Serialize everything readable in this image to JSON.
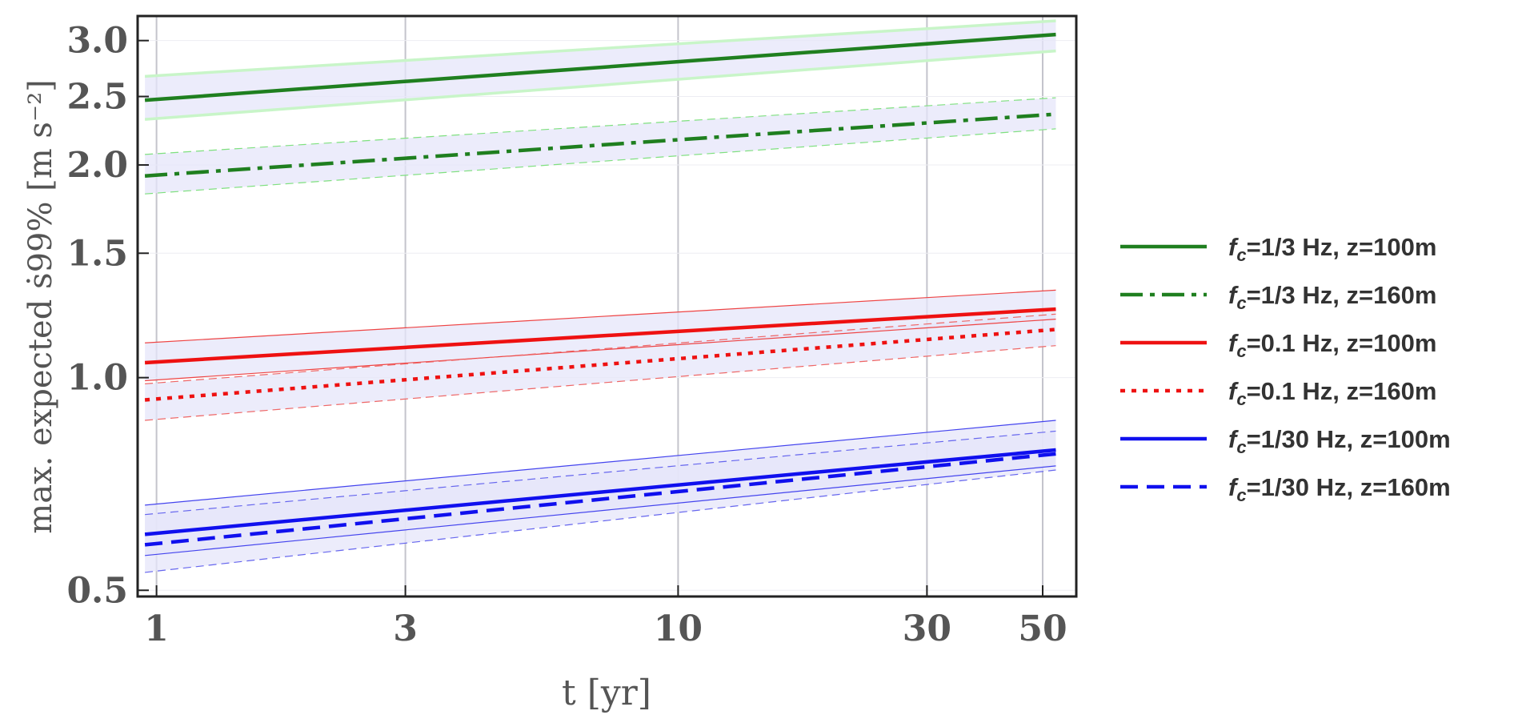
{
  "chart_data": {
    "type": "line",
    "xlabel": "t [yr]",
    "ylabel": "max. expected ṡ99% [m s⁻²]",
    "x_scale": "log",
    "y_scale": "log",
    "xlim": [
      0.92,
      58
    ],
    "ylim": [
      0.49,
      3.25
    ],
    "x_ticks": [
      1,
      3,
      10,
      30,
      50
    ],
    "x_tick_labels": [
      "1",
      "3",
      "10",
      "30",
      "50"
    ],
    "y_ticks": [
      0.5,
      1.0,
      1.5,
      2.0,
      2.5,
      3.0
    ],
    "y_tick_labels": [
      "0.5",
      "1.0",
      "1.5",
      "2.0",
      "2.5",
      "3.0"
    ],
    "grid": "vertical lines at major x ticks",
    "legend_position": "right, outside plot",
    "x": [
      0.95,
      53
    ],
    "series": [
      {
        "name": "1/3 Hz, z=100m",
        "legend_main": "f",
        "legend_sub": "c",
        "legend_rest": "=1/3 Hz, z=100m",
        "color": "#1f7f1f",
        "band_edge_color": "#c8f5c8",
        "dash": "solid",
        "values": [
          2.47,
          3.06
        ],
        "band_low": [
          2.32,
          2.9
        ],
        "band_high": [
          2.67,
          3.2
        ]
      },
      {
        "name": "1/3 Hz, z=160m",
        "legend_main": "f",
        "legend_sub": "c",
        "legend_rest": "=1/3 Hz, z=160m",
        "color": "#1f7f1f",
        "band_edge_color": "#7fe07f",
        "dash": "dashdot",
        "values": [
          1.93,
          2.36
        ],
        "band_low": [
          1.82,
          2.25
        ],
        "band_high": [
          2.07,
          2.49
        ]
      },
      {
        "name": "0.1 Hz, z=100m",
        "legend_main": "f",
        "legend_sub": "c",
        "legend_rest": "=0.1 Hz, z=100m",
        "color": "#ee1111",
        "band_edge_color": "#ee4444",
        "dash": "solid",
        "values": [
          1.05,
          1.25
        ],
        "band_low": [
          0.99,
          1.21
        ],
        "band_high": [
          1.12,
          1.33
        ]
      },
      {
        "name": "0.1 Hz, z=160m",
        "legend_main": "f",
        "legend_sub": "c",
        "legend_rest": "=0.1 Hz, z=160m",
        "color": "#ee1111",
        "band_edge_color": "#ee6666",
        "dash": "dot",
        "values": [
          0.93,
          1.17
        ],
        "band_low": [
          0.87,
          1.11
        ],
        "band_high": [
          0.98,
          1.23
        ]
      },
      {
        "name": "1/30 Hz, z=100m",
        "legend_main": "f",
        "legend_sub": "c",
        "legend_rest": "=1/30 Hz, z=100m",
        "color": "#1010ee",
        "band_edge_color": "#4444ee",
        "dash": "solid",
        "values": [
          0.6,
          0.79
        ],
        "band_low": [
          0.56,
          0.75
        ],
        "band_high": [
          0.66,
          0.87
        ]
      },
      {
        "name": "1/30 Hz, z=160m",
        "legend_main": "f",
        "legend_sub": "c",
        "legend_rest": "=1/30 Hz, z=160m",
        "color": "#1010ee",
        "band_edge_color": "#6666ee",
        "dash": "dash",
        "values": [
          0.58,
          0.78
        ],
        "band_low": [
          0.53,
          0.74
        ],
        "band_high": [
          0.64,
          0.84
        ]
      }
    ]
  }
}
